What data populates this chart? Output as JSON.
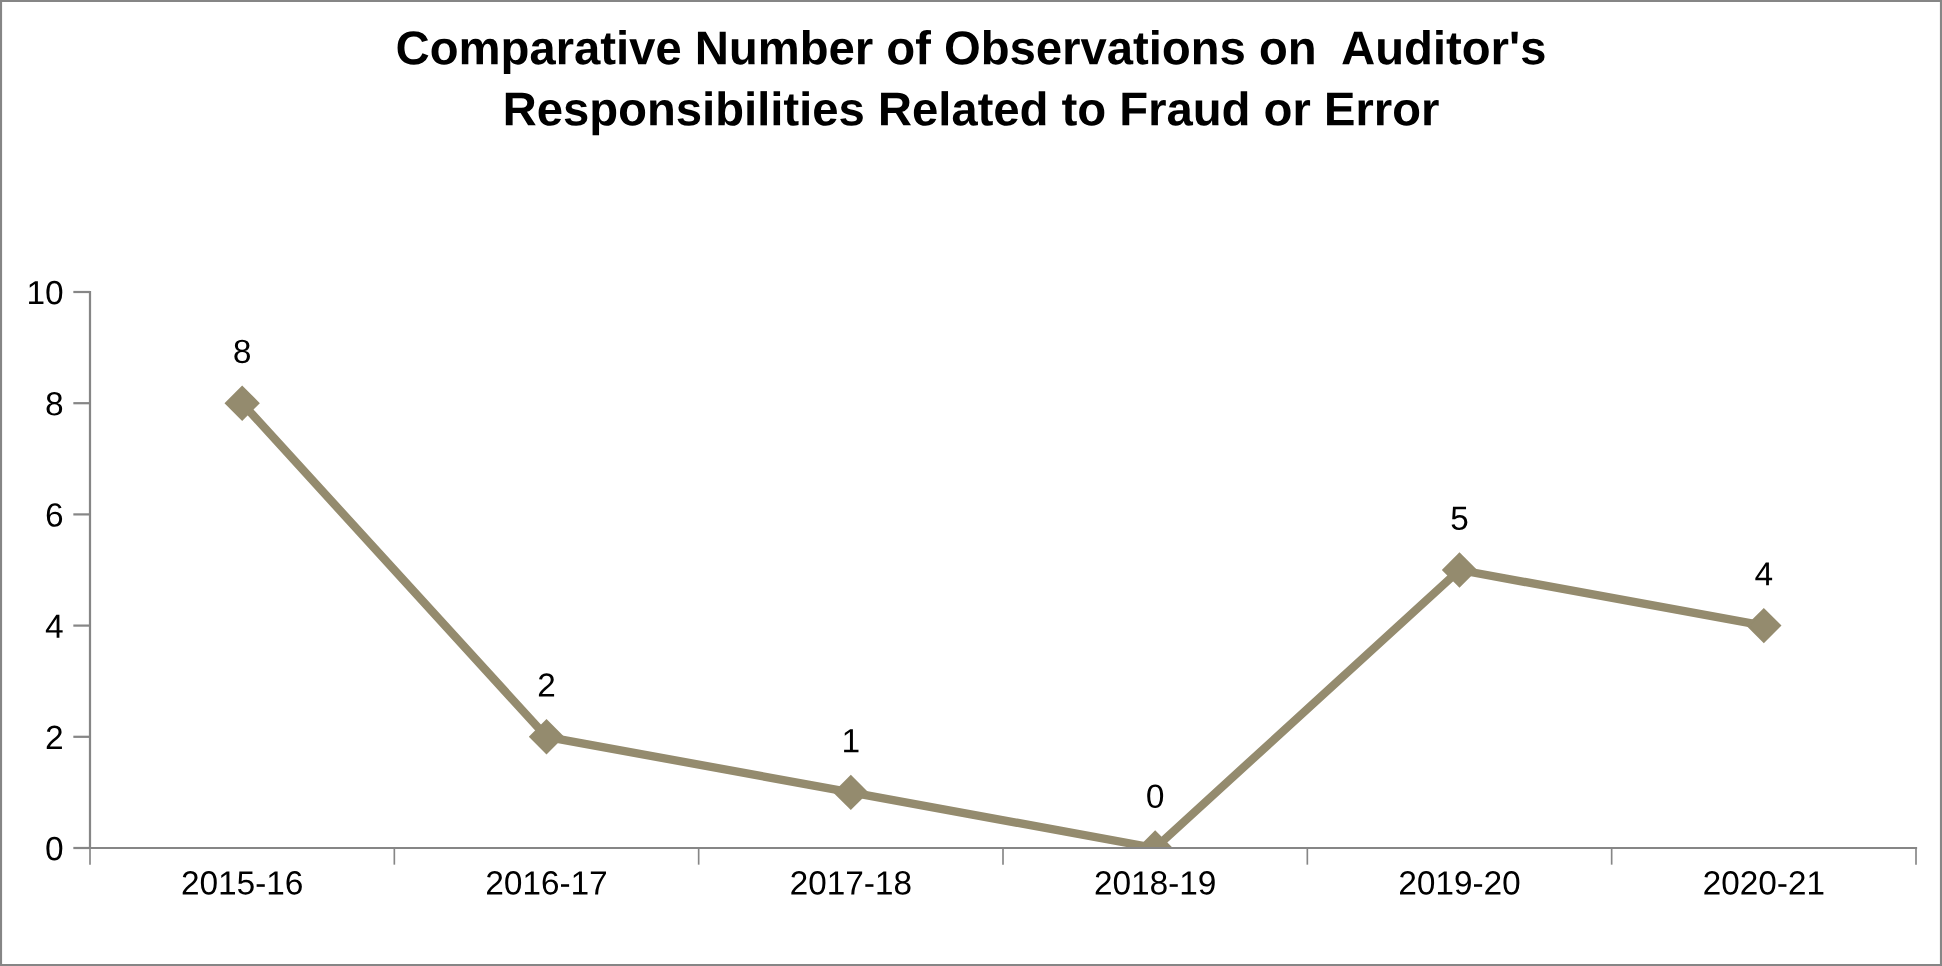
{
  "chart_data": {
    "type": "line",
    "title": "Comparative Number of Observations on  Auditor's\nResponsibilities Related to Fraud or Error",
    "categories": [
      "2015-16",
      "2016-17",
      "2017-18",
      "2018-19",
      "2019-20",
      "2020-21"
    ],
    "values": [
      8,
      2,
      1,
      0,
      5,
      4
    ],
    "color": "#948b6e",
    "ylim": [
      0,
      10
    ],
    "yticks": [
      0,
      2,
      4,
      6,
      8,
      10
    ],
    "grid": false,
    "legend": false,
    "marker": "diamond",
    "line_style": "solid",
    "data_labels": true
  }
}
